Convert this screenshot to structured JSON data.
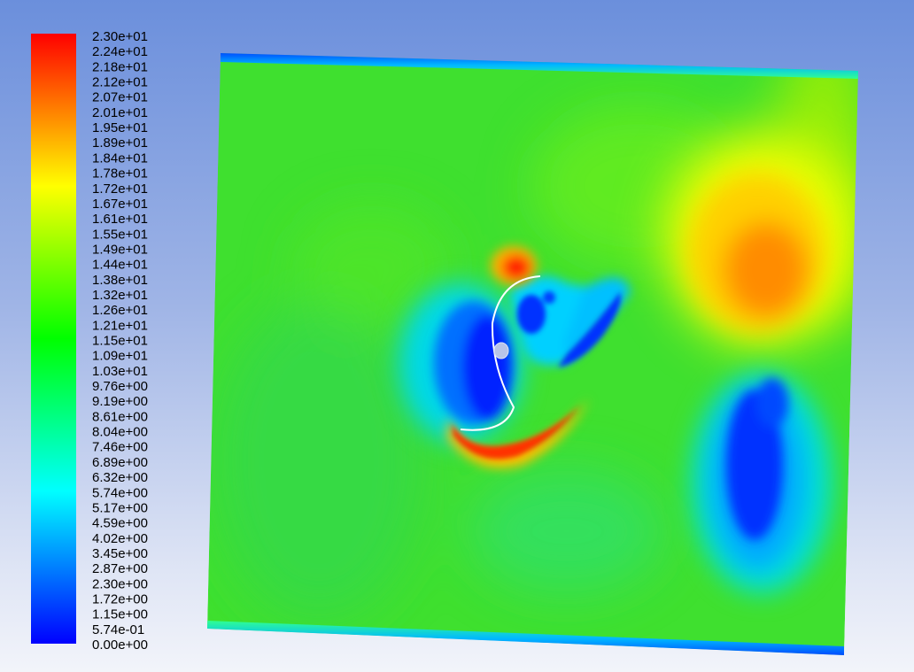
{
  "chart_data": {
    "type": "heatmap",
    "title": "",
    "colorbar": {
      "position": "left",
      "labels": [
        "2.30e+01",
        "2.24e+01",
        "2.18e+01",
        "2.12e+01",
        "2.07e+01",
        "2.01e+01",
        "1.95e+01",
        "1.89e+01",
        "1.84e+01",
        "1.78e+01",
        "1.72e+01",
        "1.67e+01",
        "1.61e+01",
        "1.55e+01",
        "1.49e+01",
        "1.44e+01",
        "1.38e+01",
        "1.32e+01",
        "1.26e+01",
        "1.21e+01",
        "1.15e+01",
        "1.09e+01",
        "1.03e+01",
        "9.76e+00",
        "9.19e+00",
        "8.61e+00",
        "8.04e+00",
        "7.46e+00",
        "6.89e+00",
        "6.32e+00",
        "5.74e+00",
        "5.17e+00",
        "4.59e+00",
        "4.02e+00",
        "3.45e+00",
        "2.87e+00",
        "2.30e+00",
        "1.72e+00",
        "1.15e+00",
        "5.74e-01",
        "0.00e+00"
      ],
      "min": 0.0,
      "max": 23.0,
      "colormap": [
        "#0000ff",
        "#00ffff",
        "#00ff00",
        "#ffff00",
        "#ff0000"
      ]
    },
    "field": {
      "background_value": 10.5,
      "features": [
        {
          "name": "upper-right high region",
          "value": 17.8
        },
        {
          "name": "lower-right low region",
          "value": 2.0
        },
        {
          "name": "rotor wake low region",
          "value": 2.5
        },
        {
          "name": "rotor tip high lobe",
          "value": 19.5
        },
        {
          "name": "rotor lower crescent high",
          "value": 20.0
        }
      ]
    }
  }
}
